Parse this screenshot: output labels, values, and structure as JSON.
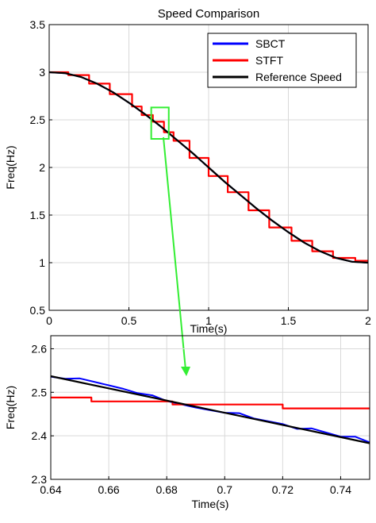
{
  "colors": {
    "sbct": "#0000ff",
    "stft": "#ff0000",
    "reference": "#000000",
    "zoom_box": "#33ee33",
    "grid": "#d9d9d9"
  },
  "chart_data": [
    {
      "id": "main",
      "type": "line",
      "title": "Speed Comparison",
      "xlabel": "Time(s)",
      "ylabel": "Freq(Hz)",
      "xlim": [
        0,
        2
      ],
      "ylim": [
        0.5,
        3.5
      ],
      "xticks": [
        0,
        0.5,
        1,
        1.5,
        2
      ],
      "xtick_labels": [
        "0",
        "0.5",
        "1",
        "1.5",
        "2"
      ],
      "yticks": [
        0.5,
        1,
        1.5,
        2,
        2.5,
        3,
        3.5
      ],
      "ytick_labels": [
        "0.5",
        "1",
        "1.5",
        "2",
        "2.5",
        "3",
        "3.5"
      ],
      "grid": true,
      "legend": {
        "position": "top-right",
        "entries": [
          "SBCT",
          "STFT",
          "Reference Speed"
        ]
      },
      "zoom_box": {
        "x": [
          0.64,
          0.75
        ],
        "y": [
          2.3,
          2.63
        ]
      },
      "series": [
        {
          "name": "SBCT",
          "x": [
            0,
            0.1,
            0.2,
            0.3,
            0.4,
            0.5,
            0.6,
            0.7,
            0.8,
            0.9,
            1.0,
            1.1,
            1.2,
            1.3,
            1.4,
            1.5,
            1.6,
            1.7,
            1.8,
            1.9,
            2.0
          ],
          "y": [
            3.0,
            2.99,
            2.95,
            2.88,
            2.79,
            2.68,
            2.56,
            2.43,
            2.29,
            2.15,
            2.0,
            1.85,
            1.71,
            1.57,
            1.44,
            1.32,
            1.21,
            1.12,
            1.05,
            1.01,
            1.0
          ]
        },
        {
          "name": "STFT",
          "x": [
            0,
            0.12,
            0.12,
            0.25,
            0.25,
            0.38,
            0.38,
            0.52,
            0.52,
            0.58,
            0.58,
            0.65,
            0.65,
            0.72,
            0.72,
            0.78,
            0.78,
            0.88,
            0.88,
            1.0,
            1.0,
            1.12,
            1.12,
            1.25,
            1.25,
            1.38,
            1.38,
            1.52,
            1.52,
            1.65,
            1.65,
            1.78,
            1.78,
            1.92,
            1.92,
            2.0
          ],
          "y": [
            3.0,
            3.0,
            2.97,
            2.97,
            2.88,
            2.88,
            2.77,
            2.77,
            2.64,
            2.64,
            2.55,
            2.55,
            2.48,
            2.48,
            2.37,
            2.37,
            2.28,
            2.28,
            2.1,
            2.1,
            1.91,
            1.91,
            1.74,
            1.74,
            1.55,
            1.55,
            1.37,
            1.37,
            1.23,
            1.23,
            1.12,
            1.12,
            1.05,
            1.05,
            1.02,
            1.02
          ]
        },
        {
          "name": "Reference Speed",
          "x": [
            0,
            0.1,
            0.2,
            0.3,
            0.4,
            0.5,
            0.6,
            0.7,
            0.8,
            0.9,
            1.0,
            1.1,
            1.2,
            1.3,
            1.4,
            1.5,
            1.6,
            1.7,
            1.8,
            1.9,
            2.0
          ],
          "y": [
            3.0,
            2.99,
            2.95,
            2.88,
            2.79,
            2.68,
            2.56,
            2.43,
            2.29,
            2.15,
            2.0,
            1.85,
            1.71,
            1.57,
            1.44,
            1.32,
            1.21,
            1.12,
            1.05,
            1.01,
            1.0
          ]
        }
      ]
    },
    {
      "id": "zoom",
      "type": "line",
      "title": "",
      "xlabel": "Time(s)",
      "ylabel": "Freq(Hz)",
      "xlim": [
        0.64,
        0.75
      ],
      "ylim": [
        2.3,
        2.63
      ],
      "xticks": [
        0.64,
        0.66,
        0.68,
        0.7,
        0.72,
        0.74
      ],
      "xtick_labels": [
        "0.64",
        "0.66",
        "0.68",
        "0.7",
        "0.72",
        "0.74"
      ],
      "yticks": [
        2.3,
        2.4,
        2.5,
        2.6
      ],
      "ytick_labels": [
        "2.3",
        "2.4",
        "2.5",
        "2.6"
      ],
      "grid": true,
      "series": [
        {
          "name": "SBCT",
          "x": [
            0.64,
            0.645,
            0.65,
            0.66,
            0.665,
            0.67,
            0.675,
            0.68,
            0.69,
            0.7,
            0.705,
            0.71,
            0.72,
            0.725,
            0.73,
            0.74,
            0.745,
            0.75
          ],
          "y": [
            2.536,
            2.531,
            2.532,
            2.516,
            2.508,
            2.498,
            2.493,
            2.48,
            2.465,
            2.453,
            2.452,
            2.44,
            2.427,
            2.416,
            2.417,
            2.398,
            2.398,
            2.385
          ]
        },
        {
          "name": "STFT",
          "x": [
            0.64,
            0.654,
            0.654,
            0.682,
            0.682,
            0.72,
            0.72,
            0.75
          ],
          "y": [
            2.488,
            2.488,
            2.479,
            2.479,
            2.472,
            2.472,
            2.463,
            2.463
          ]
        },
        {
          "name": "Reference Speed",
          "x": [
            0.64,
            0.75
          ],
          "y": [
            2.537,
            2.383
          ]
        }
      ]
    }
  ]
}
